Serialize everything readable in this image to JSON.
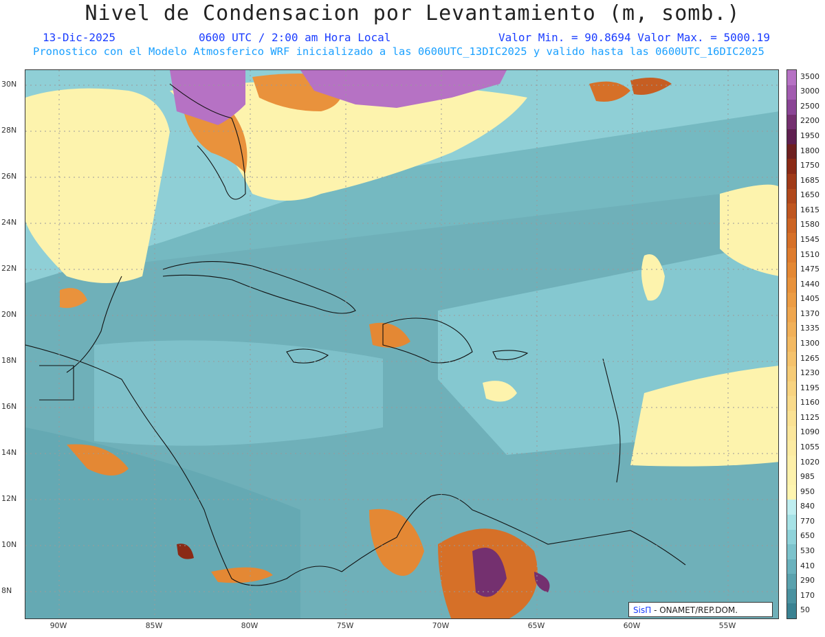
{
  "header": {
    "title": "Nivel de Condensacion por Levantamiento (m, somb.)",
    "date": "13-Dic-2025",
    "time": "0600 UTC / 2:00 am Hora Local",
    "stats": "Valor Min. = 90.8694  Valor Max. = 5000.19",
    "model_line": "Pronostico con el Modelo Atmosferico WRF inicializado a las 0600UTC_13DIC2025 y valido hasta las  0600UTC_16DIC2025"
  },
  "map": {
    "lat_labels": [
      "30N",
      "28N",
      "26N",
      "24N",
      "22N",
      "20N",
      "18N",
      "16N",
      "14N",
      "12N",
      "10N",
      "8N"
    ],
    "lon_labels": [
      "90W",
      "85W",
      "80W",
      "75W",
      "70W",
      "65W",
      "60W",
      "55W"
    ],
    "background_color": "#6fb5bd"
  },
  "colorbar": {
    "levels": [
      {
        "label": "3500",
        "color": "#b672c4"
      },
      {
        "label": "3000",
        "color": "#a25cb0"
      },
      {
        "label": "2500",
        "color": "#8a4595"
      },
      {
        "label": "2200",
        "color": "#74306f"
      },
      {
        "label": "1950",
        "color": "#5f2050"
      },
      {
        "label": "1800",
        "color": "#6e2020"
      },
      {
        "label": "1750",
        "color": "#8a2a16"
      },
      {
        "label": "1685",
        "color": "#a03a18"
      },
      {
        "label": "1650",
        "color": "#b0481c"
      },
      {
        "label": "1615",
        "color": "#bf5620"
      },
      {
        "label": "1580",
        "color": "#cc6424"
      },
      {
        "label": "1545",
        "color": "#d67028"
      },
      {
        "label": "1510",
        "color": "#de7c2e"
      },
      {
        "label": "1475",
        "color": "#e48834"
      },
      {
        "label": "1440",
        "color": "#e8923c"
      },
      {
        "label": "1405",
        "color": "#ec9c44"
      },
      {
        "label": "1370",
        "color": "#efa64e"
      },
      {
        "label": "1335",
        "color": "#f1b058"
      },
      {
        "label": "1300",
        "color": "#f3b962"
      },
      {
        "label": "1265",
        "color": "#f5c26c"
      },
      {
        "label": "1230",
        "color": "#f6cb76"
      },
      {
        "label": "1195",
        "color": "#f8d380"
      },
      {
        "label": "1160",
        "color": "#f9da8a"
      },
      {
        "label": "1125",
        "color": "#fae193"
      },
      {
        "label": "1090",
        "color": "#fbe69b"
      },
      {
        "label": "1055",
        "color": "#fceba2"
      },
      {
        "label": "1020",
        "color": "#fdefa8"
      },
      {
        "label": "985",
        "color": "#fdf2ac"
      },
      {
        "label": "950",
        "color": "#fef5b0"
      },
      {
        "label": "840",
        "color": "#bfeef0"
      },
      {
        "label": "770",
        "color": "#a6e2e6"
      },
      {
        "label": "650",
        "color": "#8fd3da"
      },
      {
        "label": "530",
        "color": "#7cc3cc"
      },
      {
        "label": "410",
        "color": "#6ab2bd"
      },
      {
        "label": "290",
        "color": "#5aa2ae"
      },
      {
        "label": "170",
        "color": "#4a92a0"
      },
      {
        "label": "50",
        "color": "#3a8292"
      }
    ]
  },
  "credit": {
    "sis": "SisΠ",
    "rest": "- ONAMET/REP.DOM."
  }
}
